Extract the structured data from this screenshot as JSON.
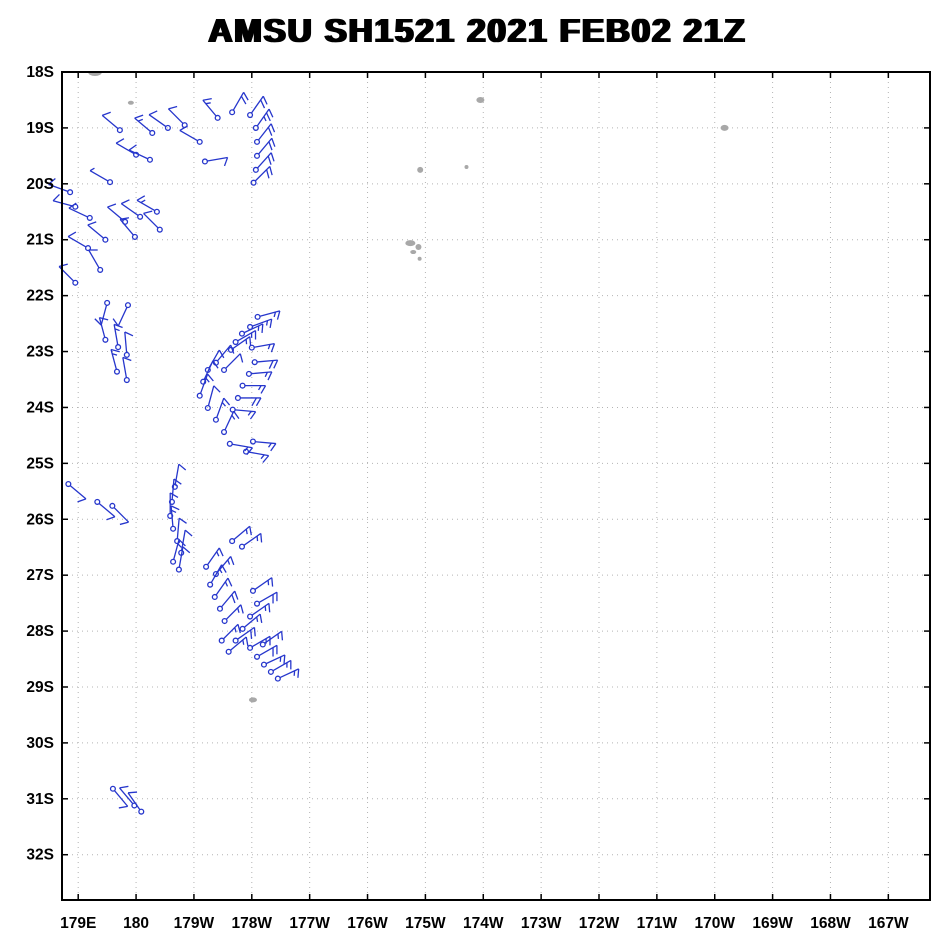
{
  "title": {
    "text": "AMSU SH1521 2021 FEB02 21Z"
  },
  "chart_data": {
    "type": "scatter",
    "subtype": "wind-barb-map",
    "title": "AMSU SH1521 2021 FEB02 21Z",
    "grid": "dotted",
    "legend": "none",
    "colors": {
      "barb": "#2636cc",
      "land": "#a8a8a8",
      "grid": "#b4b4b4",
      "axis": "#000000"
    },
    "x_axis": {
      "range": [
        178.72,
        193.72
      ],
      "ticks": [
        {
          "v": 179,
          "label": "179E"
        },
        {
          "v": 180,
          "label": "180"
        },
        {
          "v": 181,
          "label": "179W"
        },
        {
          "v": 182,
          "label": "178W"
        },
        {
          "v": 183,
          "label": "177W"
        },
        {
          "v": 184,
          "label": "176W"
        },
        {
          "v": 185,
          "label": "175W"
        },
        {
          "v": 186,
          "label": "174W"
        },
        {
          "v": 187,
          "label": "173W"
        },
        {
          "v": 188,
          "label": "172W"
        },
        {
          "v": 189,
          "label": "171W"
        },
        {
          "v": 190,
          "label": "170W"
        },
        {
          "v": 191,
          "label": "169W"
        },
        {
          "v": 192,
          "label": "168W"
        },
        {
          "v": 193,
          "label": "167W"
        }
      ]
    },
    "y_axis": {
      "range": [
        -32.81,
        -18.0
      ],
      "ticks": [
        {
          "v": -18,
          "label": "18S"
        },
        {
          "v": -19,
          "label": "19S"
        },
        {
          "v": -20,
          "label": "20S"
        },
        {
          "v": -21,
          "label": "21S"
        },
        {
          "v": -22,
          "label": "22S"
        },
        {
          "v": -23,
          "label": "23S"
        },
        {
          "v": -24,
          "label": "24S"
        },
        {
          "v": -25,
          "label": "25S"
        },
        {
          "v": -26,
          "label": "26S"
        },
        {
          "v": -27,
          "label": "27S"
        },
        {
          "v": -28,
          "label": "28S"
        },
        {
          "v": -29,
          "label": "29S"
        },
        {
          "v": -30,
          "label": "30S"
        },
        {
          "v": -31,
          "label": "31S"
        },
        {
          "v": -32,
          "label": "32S"
        }
      ]
    },
    "barb_format": [
      "lon_deg_east_continuous",
      "lat_deg",
      "wind_from_dir_deg",
      "speed_kt"
    ],
    "barbs": [
      [
        179.72,
        -19.04,
        310,
        10
      ],
      [
        180.0,
        -19.48,
        300,
        10
      ],
      [
        180.28,
        -19.09,
        310,
        15
      ],
      [
        180.55,
        -19.0,
        305,
        10
      ],
      [
        180.84,
        -18.95,
        315,
        10
      ],
      [
        181.1,
        -19.25,
        300,
        10
      ],
      [
        181.41,
        -18.82,
        320,
        15
      ],
      [
        180.24,
        -19.57,
        295,
        10
      ],
      [
        181.19,
        -19.6,
        80,
        10
      ],
      [
        181.66,
        -18.72,
        30,
        20
      ],
      [
        181.97,
        -18.77,
        35,
        20
      ],
      [
        182.07,
        -19.0,
        35,
        25
      ],
      [
        182.09,
        -19.25,
        38,
        20
      ],
      [
        182.09,
        -19.5,
        40,
        20
      ],
      [
        182.07,
        -19.75,
        42,
        20
      ],
      [
        182.03,
        -19.98,
        45,
        20
      ],
      [
        178.86,
        -20.15,
        290,
        10
      ],
      [
        178.95,
        -20.41,
        285,
        10
      ],
      [
        179.2,
        -20.61,
        295,
        10
      ],
      [
        179.55,
        -19.97,
        300,
        5
      ],
      [
        179.81,
        -20.68,
        310,
        10
      ],
      [
        180.07,
        -20.59,
        305,
        10
      ],
      [
        180.36,
        -20.5,
        300,
        15
      ],
      [
        180.41,
        -20.82,
        315,
        10
      ],
      [
        179.98,
        -20.95,
        320,
        10
      ],
      [
        179.47,
        -21.0,
        310,
        10
      ],
      [
        179.17,
        -21.15,
        300,
        10
      ],
      [
        179.38,
        -21.54,
        330,
        10
      ],
      [
        178.95,
        -21.77,
        315,
        10
      ],
      [
        179.5,
        -22.13,
        195,
        10
      ],
      [
        179.86,
        -22.17,
        205,
        10
      ],
      [
        179.47,
        -22.79,
        345,
        10
      ],
      [
        179.69,
        -22.92,
        350,
        15
      ],
      [
        179.84,
        -23.06,
        355,
        10
      ],
      [
        179.67,
        -23.36,
        345,
        15
      ],
      [
        179.84,
        -23.51,
        350,
        10
      ],
      [
        182.1,
        -22.38,
        75,
        15
      ],
      [
        181.97,
        -22.56,
        70,
        15
      ],
      [
        181.83,
        -22.68,
        65,
        15
      ],
      [
        181.72,
        -22.83,
        60,
        15
      ],
      [
        181.64,
        -22.97,
        55,
        15
      ],
      [
        182.0,
        -22.93,
        80,
        15
      ],
      [
        182.05,
        -23.19,
        85,
        20
      ],
      [
        181.95,
        -23.4,
        85,
        15
      ],
      [
        181.84,
        -23.61,
        90,
        15
      ],
      [
        181.76,
        -23.83,
        90,
        20
      ],
      [
        181.67,
        -24.04,
        95,
        15
      ],
      [
        181.52,
        -23.33,
        45,
        10
      ],
      [
        181.38,
        -23.2,
        40,
        10
      ],
      [
        181.24,
        -23.33,
        30,
        10
      ],
      [
        181.16,
        -23.54,
        25,
        10
      ],
      [
        181.1,
        -23.79,
        20,
        15
      ],
      [
        181.24,
        -24.01,
        15,
        10
      ],
      [
        181.38,
        -24.22,
        20,
        15
      ],
      [
        181.52,
        -24.44,
        25,
        15
      ],
      [
        181.62,
        -24.65,
        100,
        15
      ],
      [
        182.02,
        -24.61,
        95,
        15
      ],
      [
        181.9,
        -24.79,
        100,
        15
      ],
      [
        178.83,
        -25.37,
        130,
        10
      ],
      [
        179.33,
        -25.69,
        130,
        10
      ],
      [
        179.59,
        -25.76,
        135,
        10
      ],
      [
        180.67,
        -25.42,
        10,
        10
      ],
      [
        180.62,
        -25.69,
        5,
        15
      ],
      [
        180.59,
        -25.94,
        0,
        10
      ],
      [
        180.64,
        -26.17,
        355,
        15
      ],
      [
        180.71,
        -26.39,
        5,
        10
      ],
      [
        180.78,
        -26.6,
        10,
        10
      ],
      [
        180.64,
        -26.76,
        15,
        15
      ],
      [
        180.74,
        -26.9,
        10,
        10
      ],
      [
        181.66,
        -26.39,
        50,
        15
      ],
      [
        181.83,
        -26.49,
        55,
        15
      ],
      [
        181.21,
        -26.85,
        35,
        15
      ],
      [
        181.38,
        -26.98,
        40,
        15
      ],
      [
        181.28,
        -27.17,
        30,
        15
      ],
      [
        181.36,
        -27.39,
        35,
        15
      ],
      [
        181.45,
        -27.6,
        40,
        20
      ],
      [
        181.53,
        -27.82,
        45,
        15
      ],
      [
        182.02,
        -27.28,
        55,
        15
      ],
      [
        182.09,
        -27.51,
        60,
        20
      ],
      [
        181.97,
        -27.74,
        55,
        15
      ],
      [
        181.84,
        -27.96,
        50,
        15
      ],
      [
        181.72,
        -28.17,
        55,
        20
      ],
      [
        181.6,
        -28.37,
        50,
        15
      ],
      [
        181.48,
        -28.17,
        45,
        15
      ],
      [
        181.97,
        -28.3,
        60,
        15
      ],
      [
        182.09,
        -28.46,
        60,
        20
      ],
      [
        182.21,
        -28.6,
        65,
        15
      ],
      [
        182.33,
        -28.73,
        60,
        15
      ],
      [
        182.45,
        -28.85,
        65,
        15
      ],
      [
        182.19,
        -28.24,
        55,
        15
      ],
      [
        179.6,
        -30.82,
        140,
        10
      ],
      [
        179.97,
        -31.12,
        320,
        10
      ],
      [
        180.09,
        -31.23,
        325,
        10
      ]
    ],
    "land_format": [
      "lon_deg_east_continuous",
      "lat_deg",
      "rx_px",
      "ry_px"
    ],
    "land": [
      [
        179.29,
        -18.0,
        7,
        4
      ],
      [
        179.91,
        -18.55,
        3,
        2
      ],
      [
        180.97,
        -17.92,
        3,
        2
      ],
      [
        185.95,
        -18.5,
        4,
        3
      ],
      [
        184.91,
        -19.75,
        3,
        3
      ],
      [
        185.71,
        -19.7,
        2,
        2
      ],
      [
        184.74,
        -21.06,
        5,
        3
      ],
      [
        184.88,
        -21.13,
        3,
        3
      ],
      [
        184.79,
        -21.22,
        3,
        2
      ],
      [
        184.9,
        -21.34,
        2,
        2
      ],
      [
        190.17,
        -19.0,
        4,
        3
      ],
      [
        182.02,
        -29.23,
        4,
        2.5
      ]
    ]
  }
}
